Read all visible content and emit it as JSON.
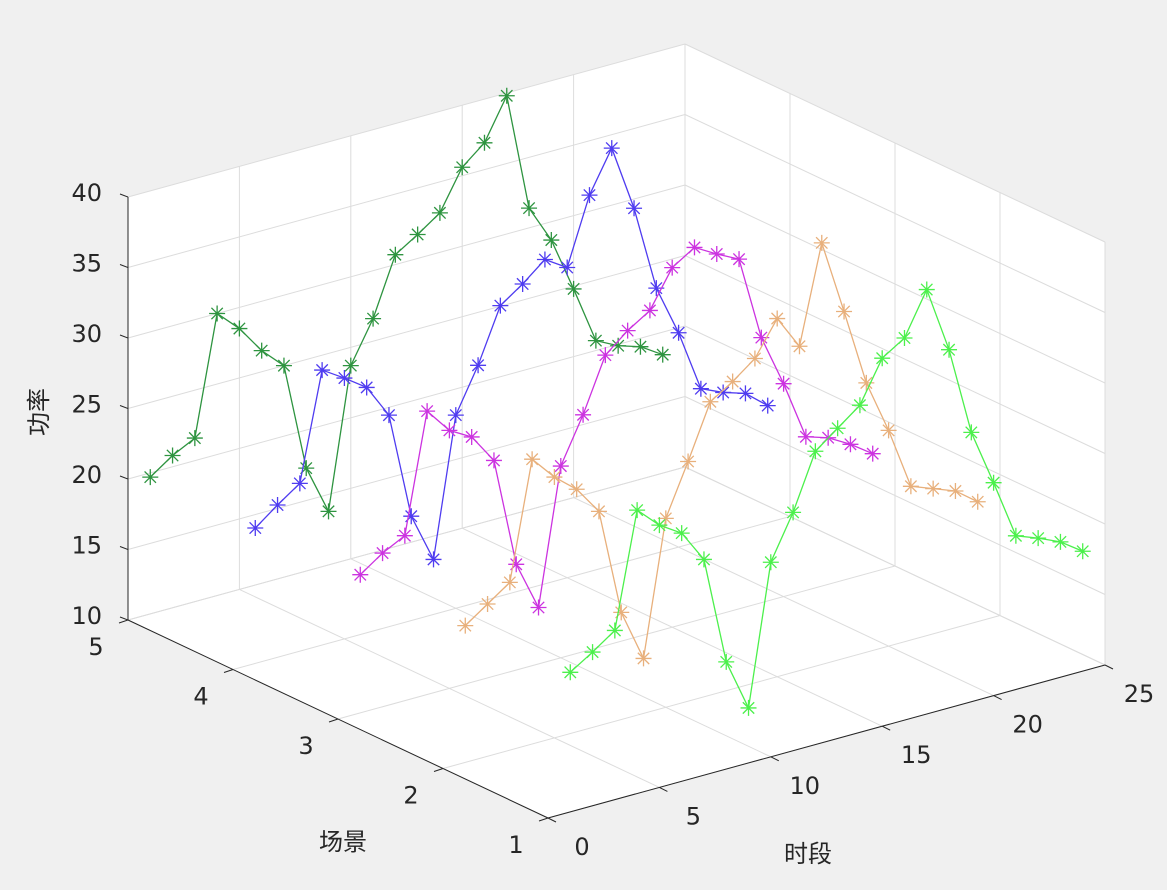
{
  "chart_data": {
    "type": "line3d",
    "xlabel": "时段",
    "ylabel": "场景",
    "zlabel": "功率",
    "x": [
      1,
      2,
      3,
      4,
      5,
      6,
      7,
      8,
      9,
      10,
      11,
      12,
      13,
      14,
      15,
      16,
      17,
      18,
      19,
      20,
      21,
      22,
      23,
      24
    ],
    "series": [
      {
        "y": 5,
        "color": "#2e9440",
        "values": [
          19.7,
          20.8,
          21.6,
          30.0,
          28.5,
          26.5,
          25.0,
          17.3,
          13.8,
          23.7,
          26.6,
          30.7,
          31.7,
          32.8,
          35.6,
          36.9,
          39.8,
          31.4,
          28.7,
          24.8,
          20.7,
          19.9,
          19.4,
          18.4
        ]
      },
      {
        "y": 4,
        "color": "#4f3cf0",
        "values": [
          19.6,
          20.8,
          21.9,
          29.5,
          28.5,
          27.4,
          25.0,
          17.4,
          13.9,
          23.7,
          26.8,
          30.6,
          31.7,
          33.0,
          32.0,
          36.7,
          39.6,
          34.9,
          28.8,
          25.2,
          20.8,
          20.1,
          19.6,
          18.3
        ]
      },
      {
        "y": 3,
        "color": "#cc33e0",
        "values": [
          19.8,
          20.9,
          21.7,
          30.1,
          28.3,
          27.4,
          25.3,
          17.5,
          14.0,
          23.6,
          26.8,
          30.6,
          31.9,
          32.9,
          35.5,
          36.5,
          35.6,
          34.8,
          28.8,
          25.1,
          20.9,
          20.4,
          19.5,
          18.4
        ]
      },
      {
        "y": 2,
        "color": "#e8b07c",
        "values": [
          19.7,
          20.8,
          21.9,
          30.2,
          28.5,
          27.2,
          25.2,
          17.6,
          13.9,
          23.4,
          27.0,
          30.8,
          31.8,
          33.0,
          35.4,
          33.0,
          39.9,
          34.6,
          29.1,
          25.3,
          20.9,
          20.3,
          19.7,
          18.5
        ]
      },
      {
        "y": 1,
        "color": "#4cf04c",
        "values": [
          19.9,
          20.9,
          22.0,
          30.1,
          28.6,
          27.6,
          25.3,
          17.6,
          13.9,
          23.8,
          26.9,
          30.8,
          32.0,
          33.2,
          36.1,
          37.1,
          40.1,
          35.4,
          29.1,
          25.1,
          20.9,
          20.3,
          19.6,
          18.5
        ]
      }
    ],
    "xlim": [
      0,
      25
    ],
    "ylim": [
      1,
      5
    ],
    "zlim": [
      10,
      40
    ],
    "xticks": [
      0,
      5,
      10,
      15,
      20,
      25
    ],
    "yticks": [
      1,
      2,
      3,
      4,
      5
    ],
    "zticks": [
      10,
      15,
      20,
      25,
      30,
      35,
      40
    ],
    "grid": true
  }
}
